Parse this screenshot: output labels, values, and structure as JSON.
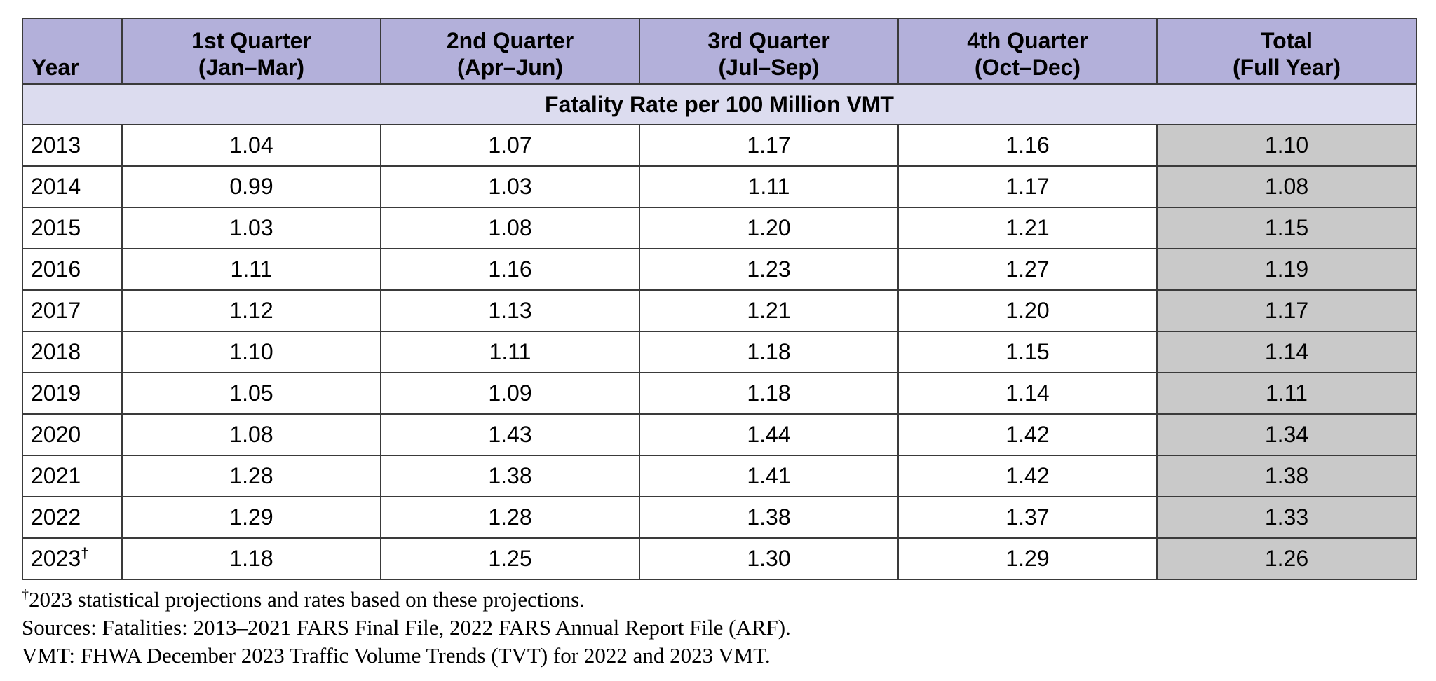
{
  "table": {
    "headers": [
      {
        "line1": "",
        "line2": "Year"
      },
      {
        "line1": "1st Quarter",
        "line2": "(Jan–Mar)"
      },
      {
        "line1": "2nd Quarter",
        "line2": "(Apr–Jun)"
      },
      {
        "line1": "3rd Quarter",
        "line2": "(Jul–Sep)"
      },
      {
        "line1": "4th Quarter",
        "line2": "(Oct–Dec)"
      },
      {
        "line1": "Total",
        "line2": "(Full Year)"
      }
    ],
    "section_label": "Fatality Rate per 100 Million VMT",
    "rows": [
      {
        "year": "2013",
        "marker": "",
        "q1": "1.04",
        "q2": "1.07",
        "q3": "1.17",
        "q4": "1.16",
        "total": "1.10"
      },
      {
        "year": "2014",
        "marker": "",
        "q1": "0.99",
        "q2": "1.03",
        "q3": "1.11",
        "q4": "1.17",
        "total": "1.08"
      },
      {
        "year": "2015",
        "marker": "",
        "q1": "1.03",
        "q2": "1.08",
        "q3": "1.20",
        "q4": "1.21",
        "total": "1.15"
      },
      {
        "year": "2016",
        "marker": "",
        "q1": "1.11",
        "q2": "1.16",
        "q3": "1.23",
        "q4": "1.27",
        "total": "1.19"
      },
      {
        "year": "2017",
        "marker": "",
        "q1": "1.12",
        "q2": "1.13",
        "q3": "1.21",
        "q4": "1.20",
        "total": "1.17"
      },
      {
        "year": "2018",
        "marker": "",
        "q1": "1.10",
        "q2": "1.11",
        "q3": "1.18",
        "q4": "1.15",
        "total": "1.14"
      },
      {
        "year": "2019",
        "marker": "",
        "q1": "1.05",
        "q2": "1.09",
        "q3": "1.18",
        "q4": "1.14",
        "total": "1.11"
      },
      {
        "year": "2020",
        "marker": "",
        "q1": "1.08",
        "q2": "1.43",
        "q3": "1.44",
        "q4": "1.42",
        "total": "1.34"
      },
      {
        "year": "2021",
        "marker": "",
        "q1": "1.28",
        "q2": "1.38",
        "q3": "1.41",
        "q4": "1.42",
        "total": "1.38"
      },
      {
        "year": "2022",
        "marker": "",
        "q1": "1.29",
        "q2": "1.28",
        "q3": "1.38",
        "q4": "1.37",
        "total": "1.33"
      },
      {
        "year": "2023",
        "marker": "†",
        "q1": "1.18",
        "q2": "1.25",
        "q3": "1.30",
        "q4": "1.29",
        "total": "1.26"
      }
    ]
  },
  "footnotes": {
    "dagger": "†",
    "projection_note": "2023 statistical projections and rates based on these projections.",
    "sources": "Sources: Fatalities: 2013–2021 FARS Final File, 2022 FARS Annual Report File (ARF).",
    "vmt": "VMT: FHWA December 2023 Traffic Volume Trends (TVT) for 2022 and 2023 VMT."
  },
  "colors": {
    "header_bg": "#b3b0da",
    "section_bg": "#dcdcef",
    "total_column_bg": "#c9c9c9",
    "border": "#3a3a3a"
  }
}
